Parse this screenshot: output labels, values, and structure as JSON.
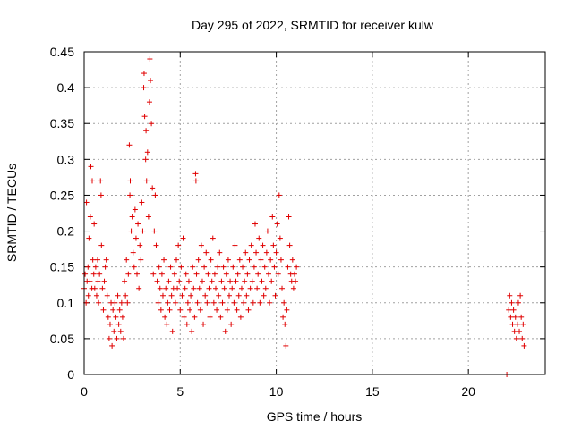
{
  "chart_data": {
    "type": "scatter",
    "title": "Day 295 of 2022, SRMTID for receiver kulw",
    "xlabel": "GPS time / hours",
    "ylabel": "SRMTID / TECUs",
    "xlim": [
      0,
      24
    ],
    "ylim": [
      0,
      0.45
    ],
    "xticks": [
      0,
      5,
      10,
      15,
      20
    ],
    "xtick_labels": [
      "0",
      "5",
      "10",
      "15",
      "20"
    ],
    "yticks": [
      0,
      0.05,
      0.1,
      0.15,
      0.2,
      0.25,
      0.3,
      0.35,
      0.4,
      0.45
    ],
    "ytick_labels": [
      "0",
      "0.05",
      "0.1",
      "0.15",
      "0.2",
      "0.25",
      "0.3",
      "0.35",
      "0.4",
      "0.45"
    ],
    "grid": true,
    "marker": "+",
    "color": "#e00000",
    "series": [
      {
        "name": "SRMTID",
        "points": [
          [
            0.0,
            0.12
          ],
          [
            0.05,
            0.14
          ],
          [
            0.1,
            0.1
          ],
          [
            0.12,
            0.24
          ],
          [
            0.15,
            0.13
          ],
          [
            0.2,
            0.15
          ],
          [
            0.22,
            0.11
          ],
          [
            0.25,
            0.19
          ],
          [
            0.3,
            0.13
          ],
          [
            0.32,
            0.22
          ],
          [
            0.35,
            0.29
          ],
          [
            0.4,
            0.12
          ],
          [
            0.42,
            0.27
          ],
          [
            0.45,
            0.16
          ],
          [
            0.5,
            0.14
          ],
          [
            0.52,
            0.21
          ],
          [
            0.55,
            0.12
          ],
          [
            0.6,
            0.15
          ],
          [
            0.65,
            0.11
          ],
          [
            0.7,
            0.16
          ],
          [
            0.72,
            0.13
          ],
          [
            0.75,
            0.1
          ],
          [
            0.8,
            0.14
          ],
          [
            0.85,
            0.27
          ],
          [
            0.88,
            0.25
          ],
          [
            0.9,
            0.18
          ],
          [
            0.95,
            0.12
          ],
          [
            1.0,
            0.09
          ],
          [
            1.05,
            0.13
          ],
          [
            1.1,
            0.15
          ],
          [
            1.15,
            0.16
          ],
          [
            1.2,
            0.11
          ],
          [
            1.25,
            0.08
          ],
          [
            1.3,
            0.05
          ],
          [
            1.35,
            0.07
          ],
          [
            1.4,
            0.1
          ],
          [
            1.45,
            0.04
          ],
          [
            1.5,
            0.09
          ],
          [
            1.55,
            0.06
          ],
          [
            1.6,
            0.1
          ],
          [
            1.65,
            0.08
          ],
          [
            1.7,
            0.05
          ],
          [
            1.75,
            0.11
          ],
          [
            1.8,
            0.07
          ],
          [
            1.85,
            0.09
          ],
          [
            1.9,
            0.06
          ],
          [
            1.95,
            0.1
          ],
          [
            2.0,
            0.08
          ],
          [
            2.05,
            0.05
          ],
          [
            2.1,
            0.13
          ],
          [
            2.15,
            0.11
          ],
          [
            2.2,
            0.16
          ],
          [
            2.25,
            0.1
          ],
          [
            2.3,
            0.14
          ],
          [
            2.35,
            0.32
          ],
          [
            2.38,
            0.25
          ],
          [
            2.4,
            0.27
          ],
          [
            2.45,
            0.2
          ],
          [
            2.5,
            0.22
          ],
          [
            2.55,
            0.17
          ],
          [
            2.6,
            0.15
          ],
          [
            2.65,
            0.23
          ],
          [
            2.7,
            0.19
          ],
          [
            2.75,
            0.14
          ],
          [
            2.8,
            0.21
          ],
          [
            2.85,
            0.12
          ],
          [
            2.9,
            0.18
          ],
          [
            2.95,
            0.16
          ],
          [
            3.0,
            0.24
          ],
          [
            3.05,
            0.2
          ],
          [
            3.1,
            0.4
          ],
          [
            3.12,
            0.42
          ],
          [
            3.15,
            0.36
          ],
          [
            3.2,
            0.3
          ],
          [
            3.22,
            0.34
          ],
          [
            3.25,
            0.27
          ],
          [
            3.3,
            0.31
          ],
          [
            3.35,
            0.22
          ],
          [
            3.4,
            0.38
          ],
          [
            3.42,
            0.44
          ],
          [
            3.45,
            0.41
          ],
          [
            3.5,
            0.35
          ],
          [
            3.55,
            0.26
          ],
          [
            3.6,
            0.14
          ],
          [
            3.65,
            0.2
          ],
          [
            3.7,
            0.25
          ],
          [
            3.75,
            0.18
          ],
          [
            3.8,
            0.13
          ],
          [
            3.85,
            0.1
          ],
          [
            3.9,
            0.15
          ],
          [
            3.95,
            0.12
          ],
          [
            4.0,
            0.09
          ],
          [
            4.05,
            0.14
          ],
          [
            4.1,
            0.11
          ],
          [
            4.15,
            0.16
          ],
          [
            4.2,
            0.08
          ],
          [
            4.25,
            0.12
          ],
          [
            4.3,
            0.07
          ],
          [
            4.35,
            0.1
          ],
          [
            4.4,
            0.13
          ],
          [
            4.45,
            0.09
          ],
          [
            4.5,
            0.15
          ],
          [
            4.55,
            0.11
          ],
          [
            4.6,
            0.06
          ],
          [
            4.65,
            0.12
          ],
          [
            4.7,
            0.14
          ],
          [
            4.75,
            0.1
          ],
          [
            4.8,
            0.16
          ],
          [
            4.85,
            0.12
          ],
          [
            4.9,
            0.18
          ],
          [
            4.95,
            0.13
          ],
          [
            5.0,
            0.09
          ],
          [
            5.05,
            0.15
          ],
          [
            5.1,
            0.11
          ],
          [
            5.15,
            0.19
          ],
          [
            5.2,
            0.08
          ],
          [
            5.25,
            0.12
          ],
          [
            5.3,
            0.14
          ],
          [
            5.35,
            0.07
          ],
          [
            5.4,
            0.1
          ],
          [
            5.45,
            0.13
          ],
          [
            5.5,
            0.09
          ],
          [
            5.55,
            0.11
          ],
          [
            5.6,
            0.06
          ],
          [
            5.65,
            0.15
          ],
          [
            5.7,
            0.12
          ],
          [
            5.75,
            0.08
          ],
          [
            5.8,
            0.28
          ],
          [
            5.82,
            0.27
          ],
          [
            5.85,
            0.14
          ],
          [
            5.9,
            0.1
          ],
          [
            5.95,
            0.16
          ],
          [
            6.0,
            0.12
          ],
          [
            6.05,
            0.09
          ],
          [
            6.1,
            0.18
          ],
          [
            6.15,
            0.13
          ],
          [
            6.2,
            0.07
          ],
          [
            6.25,
            0.15
          ],
          [
            6.3,
            0.11
          ],
          [
            6.35,
            0.17
          ],
          [
            6.4,
            0.1
          ],
          [
            6.45,
            0.14
          ],
          [
            6.5,
            0.12
          ],
          [
            6.55,
            0.08
          ],
          [
            6.6,
            0.16
          ],
          [
            6.65,
            0.13
          ],
          [
            6.7,
            0.19
          ],
          [
            6.75,
            0.1
          ],
          [
            6.8,
            0.14
          ],
          [
            6.85,
            0.12
          ],
          [
            6.9,
            0.09
          ],
          [
            6.95,
            0.15
          ],
          [
            7.0,
            0.11
          ],
          [
            7.05,
            0.17
          ],
          [
            7.1,
            0.08
          ],
          [
            7.15,
            0.13
          ],
          [
            7.2,
            0.1
          ],
          [
            7.25,
            0.15
          ],
          [
            7.3,
            0.12
          ],
          [
            7.35,
            0.06
          ],
          [
            7.4,
            0.14
          ],
          [
            7.45,
            0.09
          ],
          [
            7.5,
            0.16
          ],
          [
            7.55,
            0.11
          ],
          [
            7.6,
            0.13
          ],
          [
            7.65,
            0.07
          ],
          [
            7.7,
            0.12
          ],
          [
            7.75,
            0.15
          ],
          [
            7.8,
            0.1
          ],
          [
            7.85,
            0.18
          ],
          [
            7.9,
            0.13
          ],
          [
            7.95,
            0.09
          ],
          [
            8.0,
            0.14
          ],
          [
            8.05,
            0.11
          ],
          [
            8.1,
            0.16
          ],
          [
            8.15,
            0.08
          ],
          [
            8.2,
            0.12
          ],
          [
            8.25,
            0.15
          ],
          [
            8.3,
            0.1
          ],
          [
            8.35,
            0.13
          ],
          [
            8.4,
            0.17
          ],
          [
            8.45,
            0.11
          ],
          [
            8.5,
            0.14
          ],
          [
            8.55,
            0.09
          ],
          [
            8.6,
            0.16
          ],
          [
            8.65,
            0.12
          ],
          [
            8.7,
            0.18
          ],
          [
            8.75,
            0.13
          ],
          [
            8.8,
            0.1
          ],
          [
            8.85,
            0.15
          ],
          [
            8.9,
            0.21
          ],
          [
            8.95,
            0.17
          ],
          [
            9.0,
            0.12
          ],
          [
            9.05,
            0.14
          ],
          [
            9.1,
            0.19
          ],
          [
            9.15,
            0.1
          ],
          [
            9.2,
            0.16
          ],
          [
            9.25,
            0.13
          ],
          [
            9.3,
            0.18
          ],
          [
            9.35,
            0.11
          ],
          [
            9.4,
            0.15
          ],
          [
            9.45,
            0.12
          ],
          [
            9.5,
            0.17
          ],
          [
            9.55,
            0.2
          ],
          [
            9.6,
            0.14
          ],
          [
            9.65,
            0.1
          ],
          [
            9.7,
            0.16
          ],
          [
            9.75,
            0.13
          ],
          [
            9.8,
            0.22
          ],
          [
            9.85,
            0.18
          ],
          [
            9.9,
            0.15
          ],
          [
            9.95,
            0.11
          ],
          [
            10.0,
            0.17
          ],
          [
            10.05,
            0.21
          ],
          [
            10.1,
            0.14
          ],
          [
            10.15,
            0.25
          ],
          [
            10.2,
            0.19
          ],
          [
            10.25,
            0.16
          ],
          [
            10.3,
            0.12
          ],
          [
            10.35,
            0.08
          ],
          [
            10.4,
            0.1
          ],
          [
            10.45,
            0.07
          ],
          [
            10.5,
            0.04
          ],
          [
            10.55,
            0.09
          ],
          [
            10.6,
            0.15
          ],
          [
            10.65,
            0.22
          ],
          [
            10.7,
            0.18
          ],
          [
            10.75,
            0.14
          ],
          [
            10.8,
            0.13
          ],
          [
            10.85,
            0.16
          ],
          [
            10.9,
            0.12
          ],
          [
            10.95,
            0.14
          ],
          [
            11.0,
            0.13
          ],
          [
            11.05,
            0.15
          ],
          [
            22.0,
            0.0
          ],
          [
            22.1,
            0.09
          ],
          [
            22.15,
            0.11
          ],
          [
            22.2,
            0.08
          ],
          [
            22.25,
            0.1
          ],
          [
            22.3,
            0.07
          ],
          [
            22.35,
            0.09
          ],
          [
            22.4,
            0.06
          ],
          [
            22.45,
            0.08
          ],
          [
            22.5,
            0.05
          ],
          [
            22.55,
            0.07
          ],
          [
            22.6,
            0.1
          ],
          [
            22.65,
            0.06
          ],
          [
            22.7,
            0.11
          ],
          [
            22.75,
            0.08
          ],
          [
            22.8,
            0.05
          ],
          [
            22.85,
            0.07
          ],
          [
            22.9,
            0.04
          ]
        ]
      }
    ]
  }
}
